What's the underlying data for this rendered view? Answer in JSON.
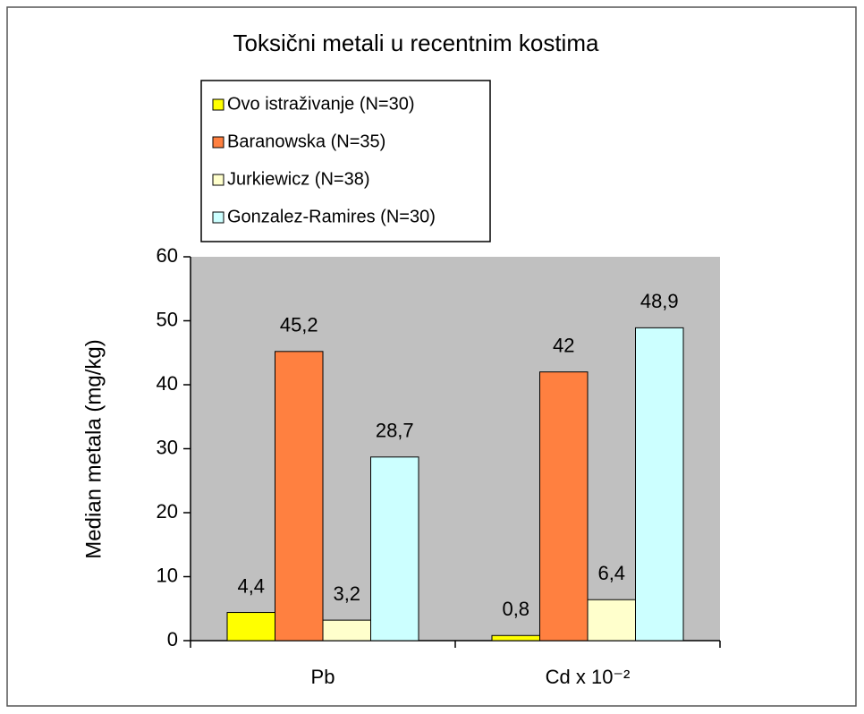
{
  "chart_data": {
    "type": "bar",
    "title": "Toksični metali u recentnim kostima",
    "y_label": "Median metala (mg/kg)",
    "categories": [
      "Pb",
      "Cd x 10⁻²"
    ],
    "series": [
      {
        "name": "Ovo istraživanje (N=30)",
        "color": "#ffff00",
        "values": [
          4.4,
          0.8
        ],
        "value_labels": [
          "4,4",
          "0,8"
        ]
      },
      {
        "name": "Baranowska (N=35)",
        "color": "#ff8040",
        "values": [
          45.2,
          42
        ],
        "value_labels": [
          "45,2",
          "42"
        ]
      },
      {
        "name": "Jurkiewicz (N=38)",
        "color": "#ffffcc",
        "values": [
          3.2,
          6.4
        ],
        "value_labels": [
          "3,2",
          "6,4"
        ]
      },
      {
        "name": "Gonzalez-Ramires (N=30)",
        "color": "#ccffff",
        "values": [
          28.7,
          48.9
        ],
        "value_labels": [
          "28,7",
          "48,9"
        ]
      }
    ],
    "ylim": [
      0,
      60
    ],
    "yticks": [
      0,
      10,
      20,
      30,
      40,
      50,
      60
    ],
    "plot_background": "#c0c0c0"
  }
}
